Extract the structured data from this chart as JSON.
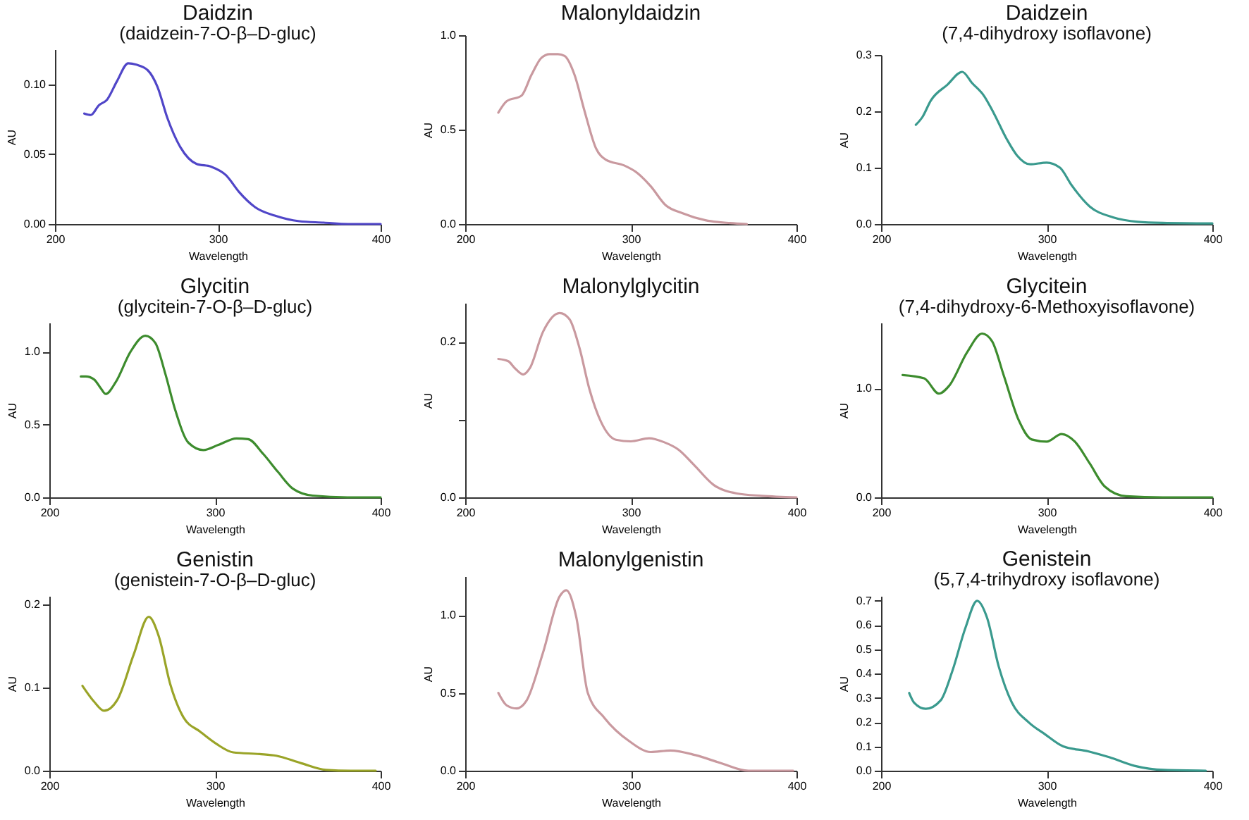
{
  "chart_data": [
    {
      "type": "line",
      "title": "Daidzin",
      "subtitle": "(daidzein-7-O-β–D-gluc)",
      "xlabel": "Wavelength",
      "ylabel": "AU",
      "xlim": [
        200,
        400
      ],
      "xticks": [
        200,
        300,
        400
      ],
      "ylim": [
        0,
        0.125
      ],
      "yticks": [
        {
          "value": 0,
          "label": "0.00"
        },
        {
          "value": 0.05,
          "label": "0.05"
        },
        {
          "value": 0.1,
          "label": "0.10"
        }
      ],
      "grid": false,
      "x": [
        218,
        222,
        227,
        232,
        238,
        245,
        250,
        257,
        263,
        269,
        277,
        287,
        296,
        305,
        313,
        323,
        335,
        350,
        365,
        380,
        400
      ],
      "series": [
        {
          "color": "#5046c8",
          "values": [
            0.079,
            0.078,
            0.085,
            0.089,
            0.102,
            0.115,
            0.114,
            0.11,
            0.098,
            0.076,
            0.055,
            0.043,
            0.041,
            0.035,
            0.023,
            0.012,
            0.006,
            0.002,
            0.001,
            0,
            0
          ]
        }
      ]
    },
    {
      "type": "line",
      "title": "Malonyldaidzin",
      "xlabel": "Wavelength",
      "ylabel": "AU",
      "xlim": [
        200,
        400
      ],
      "xticks": [
        200,
        300,
        400
      ],
      "ylim": [
        0,
        1
      ],
      "yticks": [
        {
          "value": 0,
          "label": "0.0"
        },
        {
          "value": 0.5,
          "label": "0.5"
        },
        {
          "value": 1,
          "label": "1.0"
        }
      ],
      "grid": false,
      "x": [
        220,
        225,
        234,
        240,
        246,
        251,
        256,
        260,
        266,
        272,
        279,
        285,
        296,
        304,
        312,
        321,
        331,
        345,
        360,
        370
      ],
      "series": [
        {
          "color": "#c9999f",
          "values": [
            0.59,
            0.65,
            0.68,
            0.79,
            0.88,
            0.9,
            0.9,
            0.89,
            0.79,
            0.6,
            0.4,
            0.34,
            0.31,
            0.27,
            0.2,
            0.1,
            0.058,
            0.02,
            0.005,
            0
          ]
        }
      ]
    },
    {
      "type": "line",
      "title": "Daidzein",
      "subtitle": "(7,4-dihydroxy isoflavone)",
      "xlabel": "Wavelength",
      "ylabel": "AU",
      "xlim": [
        200,
        400
      ],
      "xticks": [
        200,
        300,
        400
      ],
      "ylim": [
        0,
        0.3
      ],
      "yticks": [
        {
          "value": 0,
          "label": "0.0"
        },
        {
          "value": 0.1,
          "label": "0.1"
        },
        {
          "value": 0.2,
          "label": "0.2"
        },
        {
          "value": 0.3,
          "label": "0.3"
        }
      ],
      "grid": false,
      "x": [
        221,
        225,
        230,
        240,
        249,
        255,
        262,
        268,
        276,
        282,
        290,
        300,
        308,
        315,
        326,
        340,
        355,
        370,
        400
      ],
      "series": [
        {
          "color": "#3a9a8e",
          "values": [
            0.176,
            0.19,
            0.219,
            0.247,
            0.27,
            0.25,
            0.228,
            0.197,
            0.15,
            0.122,
            0.106,
            0.109,
            0.1,
            0.069,
            0.031,
            0.012,
            0.004,
            0.002,
            0.001
          ]
        }
      ]
    },
    {
      "type": "line",
      "title": "Glycitin",
      "subtitle": "(glycitein-7-O-β–D-gluc)",
      "xlabel": "Wavelength",
      "ylabel": "AU",
      "xlim": [
        200,
        400
      ],
      "xticks": [
        200,
        300,
        400
      ],
      "ylim": [
        0,
        1.2
      ],
      "yticks": [
        {
          "value": 0,
          "label": "0.0"
        },
        {
          "value": 0.5,
          "label": "0.5"
        },
        {
          "value": 1,
          "label": "1.0"
        }
      ],
      "grid": false,
      "x": [
        219,
        222,
        227,
        231,
        234,
        240,
        249,
        258,
        264,
        270,
        276,
        284,
        293,
        302,
        313,
        320,
        329,
        338,
        347,
        359,
        380,
        400
      ],
      "series": [
        {
          "color": "#3d8c2e",
          "values": [
            0.83,
            0.83,
            0.81,
            0.75,
            0.71,
            0.79,
            1.0,
            1.11,
            1.06,
            0.85,
            0.6,
            0.375,
            0.325,
            0.36,
            0.405,
            0.4,
            0.3,
            0.175,
            0.06,
            0.012,
            0,
            0
          ]
        }
      ]
    },
    {
      "type": "line",
      "title": "Malonylglycitin",
      "xlabel": "Wavelength",
      "ylabel": "AU",
      "xlim": [
        200,
        400
      ],
      "xticks": [
        200,
        300,
        400
      ],
      "ylim": [
        0,
        0.25
      ],
      "yticks": [
        {
          "value": 0,
          "label": "0.0"
        },
        {
          "value": 0.1,
          "label": null
        },
        {
          "value": 0.2,
          "label": "0.2"
        }
      ],
      "grid": false,
      "x": [
        220,
        226,
        230,
        235,
        239,
        247,
        257,
        263,
        269,
        275,
        282,
        291,
        300,
        311,
        320,
        329,
        338,
        350,
        364,
        379,
        400
      ],
      "series": [
        {
          "color": "#c9999f",
          "values": [
            0.178,
            0.175,
            0.166,
            0.158,
            0.166,
            0.213,
            0.237,
            0.229,
            0.192,
            0.139,
            0.097,
            0.074,
            0.072,
            0.076,
            0.071,
            0.061,
            0.042,
            0.016,
            0.005,
            0.002,
            0
          ]
        }
      ]
    },
    {
      "type": "line",
      "title": "Glycitein",
      "subtitle": "(7,4-dihydroxy-6-Methoxyisoflavone)",
      "xlabel": "Wavelength",
      "ylabel": "AU",
      "xlim": [
        200,
        400
      ],
      "xticks": [
        200,
        300,
        400
      ],
      "ylim": [
        0,
        1.6
      ],
      "yticks": [
        {
          "value": 0,
          "label": "0.0"
        },
        {
          "value": 1,
          "label": "1.0"
        }
      ],
      "grid": false,
      "x": [
        213,
        226,
        235,
        241,
        252,
        261,
        267,
        274,
        283,
        291,
        300,
        309,
        317,
        326,
        335,
        348,
        370,
        400
      ],
      "series": [
        {
          "color": "#3d8c2e",
          "values": [
            1.12,
            1.09,
            0.95,
            1.02,
            1.33,
            1.5,
            1.43,
            1.12,
            0.71,
            0.53,
            0.51,
            0.58,
            0.51,
            0.31,
            0.1,
            0.01,
            0,
            0
          ]
        }
      ]
    },
    {
      "type": "line",
      "title": "Genistin",
      "subtitle": "(genistein-7-O-β–D-gluc)",
      "xlabel": "Wavelength",
      "ylabel": "AU",
      "xlim": [
        200,
        400
      ],
      "xticks": [
        200,
        300,
        400
      ],
      "ylim": [
        0,
        0.21
      ],
      "yticks": [
        {
          "value": 0,
          "label": "0.0"
        },
        {
          "value": 0.1,
          "label": "0.1"
        },
        {
          "value": 0.2,
          "label": "0.2"
        }
      ],
      "grid": false,
      "x": [
        220,
        227,
        233,
        241,
        251,
        260,
        266,
        273,
        281,
        291,
        301,
        311,
        327,
        337,
        352,
        367,
        382,
        397
      ],
      "series": [
        {
          "color": "#9aa428",
          "values": [
            0.102,
            0.083,
            0.072,
            0.085,
            0.14,
            0.185,
            0.162,
            0.104,
            0.064,
            0.047,
            0.032,
            0.022,
            0.02,
            0.018,
            0.009,
            0.001,
            0,
            0
          ]
        }
      ]
    },
    {
      "type": "line",
      "title": "Malonylgenistin",
      "xlabel": "Wavelength",
      "ylabel": "AU",
      "xlim": [
        200,
        400
      ],
      "xticks": [
        200,
        300,
        400
      ],
      "ylim": [
        0,
        1.25
      ],
      "yticks": [
        {
          "value": 0,
          "label": "0.0"
        },
        {
          "value": 0.5,
          "label": "0.5"
        },
        {
          "value": 1,
          "label": "1.0"
        }
      ],
      "grid": false,
      "x": [
        220,
        225,
        231,
        237,
        247,
        257,
        261,
        267,
        274,
        284,
        299,
        312,
        324,
        339,
        354,
        371,
        398
      ],
      "series": [
        {
          "color": "#c9999f",
          "values": [
            0.5,
            0.42,
            0.4,
            0.45,
            0.76,
            1.12,
            1.16,
            0.99,
            0.5,
            0.34,
            0.19,
            0.12,
            0.13,
            0.1,
            0.05,
            0,
            0
          ]
        }
      ]
    },
    {
      "type": "line",
      "title": "Genistein",
      "subtitle": "(5,7,4-trihydroxy isoflavone)",
      "xlabel": "Wavelength",
      "ylabel": "AU",
      "xlim": [
        200,
        400
      ],
      "xticks": [
        200,
        300,
        400
      ],
      "ylim": [
        0,
        0.72
      ],
      "yticks": [
        {
          "value": 0,
          "label": "0.0"
        },
        {
          "value": 0.1,
          "label": "0.1"
        },
        {
          "value": 0.2,
          "label": "0.2"
        },
        {
          "value": 0.3,
          "label": "0.3"
        },
        {
          "value": 0.4,
          "label": "0.4"
        },
        {
          "value": 0.5,
          "label": "0.5"
        },
        {
          "value": 0.6,
          "label": "0.6"
        },
        {
          "value": 0.7,
          "label": "0.7"
        }
      ],
      "grid": false,
      "x": [
        217,
        220,
        227,
        236,
        243,
        251,
        258,
        264,
        271,
        279,
        289,
        299,
        310,
        325,
        338,
        353,
        371,
        396
      ],
      "series": [
        {
          "color": "#3a9a8e",
          "values": [
            0.32,
            0.28,
            0.255,
            0.29,
            0.41,
            0.59,
            0.7,
            0.63,
            0.43,
            0.28,
            0.2,
            0.15,
            0.1,
            0.08,
            0.055,
            0.02,
            0.003,
            0
          ]
        }
      ]
    }
  ]
}
